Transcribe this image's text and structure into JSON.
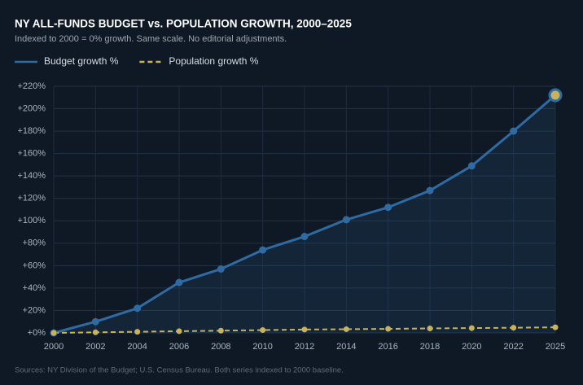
{
  "chart_data": {
    "type": "line",
    "title": "NY ALL-FUNDS BUDGET vs. POPULATION GROWTH, 2000–2025",
    "subtitle": "Indexed to 2000 = 0% growth. Same scale. No editorial adjustments.",
    "footnote": "Sources: NY Division of the Budget; U.S. Census Bureau. Both series indexed to 2000 baseline.",
    "categories": [
      "2000",
      "2002",
      "2004",
      "2006",
      "2008",
      "2010",
      "2012",
      "2014",
      "2016",
      "2018",
      "2020",
      "2022",
      "2025"
    ],
    "series": [
      {
        "name": "Budget growth %",
        "color": "#2f6aa3",
        "line_style": "solid",
        "fill_area": true,
        "values": [
          0,
          10,
          22,
          45,
          57,
          74,
          86,
          101,
          112,
          127,
          149,
          180,
          212
        ]
      },
      {
        "name": "Population growth %",
        "color": "#c8b25c",
        "line_style": "dashed",
        "fill_area": false,
        "values": [
          0,
          0.5,
          1,
          1.5,
          2,
          2.5,
          3,
          3.3,
          3.6,
          4,
          4.3,
          4.6,
          5
        ]
      }
    ],
    "ylim": [
      0,
      220
    ],
    "yticks": [
      {
        "value": 0,
        "label": "+0%"
      },
      {
        "value": 20,
        "label": "+20%"
      },
      {
        "value": 40,
        "label": "+40%"
      },
      {
        "value": 60,
        "label": "+60%"
      },
      {
        "value": 80,
        "label": "+80%"
      },
      {
        "value": 100,
        "label": "+100%"
      },
      {
        "value": 120,
        "label": "+120%"
      },
      {
        "value": 140,
        "label": "+140%"
      },
      {
        "value": 160,
        "label": "+160%"
      },
      {
        "value": 180,
        "label": "+180%"
      },
      {
        "value": 200,
        "label": "+200%"
      },
      {
        "value": 220,
        "label": "+220%"
      }
    ],
    "grid": true,
    "legend_position": "top-left"
  }
}
